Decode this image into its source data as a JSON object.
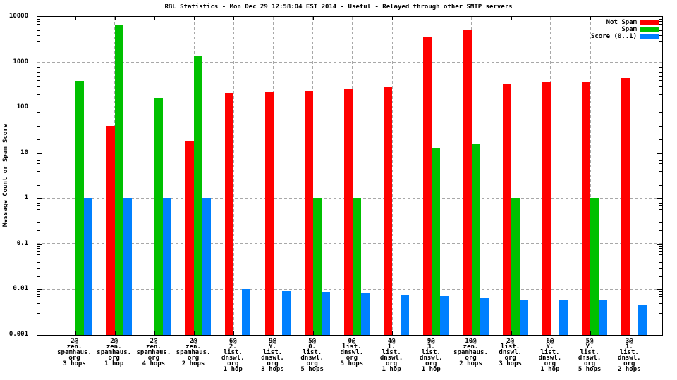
{
  "title": "RBL Statistics - Mon Dec 29 12:58:04 EST 2014 - Useful - Relayed through other SMTP servers",
  "y_axis_label": "Message Count or Spam Score",
  "legend": {
    "position": "top-right",
    "items": [
      {
        "label": "Not Spam",
        "color": "#ff0000"
      },
      {
        "label": "Spam",
        "color": "#00c000"
      },
      {
        "label": "Score (0..1)",
        "color": "#0080ff"
      }
    ]
  },
  "chart_data": {
    "type": "bar",
    "title": "RBL Statistics - Mon Dec 29 12:58:04 EST 2014 - Useful - Relayed through other SMTP servers",
    "xlabel": "",
    "ylabel": "Message Count or Spam Score",
    "y_scale": "log10",
    "ylim": [
      0.001,
      10000
    ],
    "y_tick_labels": [
      "10000",
      "1000",
      "100",
      "10",
      "1",
      "0.1",
      "0.01",
      "0.001"
    ],
    "y_tick_values": [
      10000,
      1000,
      100,
      10,
      1,
      0.1,
      0.01,
      0.001
    ],
    "grid": true,
    "legend_position": "top-right",
    "categories": [
      "2@ zen.spamhaus.org 3 hops",
      "2@ zen.spamhaus.org 1 hop",
      "2@ zen.spamhaus.org 4 hops",
      "2@ zen.spamhaus.org 2 hops",
      "6@ 2.list.dnswl.org 1 hop",
      "9@ Y.list.dnswl.org 3 hops",
      "5@ 0.list.dnswl.org 5 hops",
      "0@ list.dnswl.org 5 hops",
      "4@ 1.list.dnswl.org 1 hop",
      "9@ 3.list.dnswl.org 1 hop",
      "10@ zen.spamhaus.org 2 hops",
      "2@ list.dnswl.org 3 hops",
      "6@ Y.list.dnswl.org 1 hop",
      "5@ Y.list.dnswl.org 5 hops",
      "3@ 1.list.dnswl.org 2 hops"
    ],
    "category_lines": [
      [
        "2@",
        "zen.",
        "spamhaus.",
        "org",
        "3 hops"
      ],
      [
        "2@",
        "zen.",
        "spamhaus.",
        "org",
        "1 hop"
      ],
      [
        "2@",
        "zen.",
        "spamhaus.",
        "org",
        "4 hops"
      ],
      [
        "2@",
        "zen.",
        "spamhaus.",
        "org",
        "2 hops"
      ],
      [
        "6@",
        "2.",
        "list.",
        "dnswl.",
        "org",
        "1 hop"
      ],
      [
        "9@",
        "Y.",
        "list.",
        "dnswl.",
        "org",
        "3 hops"
      ],
      [
        "5@",
        "0.",
        "list.",
        "dnswl.",
        "org",
        "5 hops"
      ],
      [
        "0@",
        "list.",
        "dnswl.",
        "org",
        "5 hops"
      ],
      [
        "4@",
        "1.",
        "list.",
        "dnswl.",
        "org",
        "1 hop"
      ],
      [
        "9@",
        "3.",
        "list.",
        "dnswl.",
        "org",
        "1 hop"
      ],
      [
        "10@",
        "zen.",
        "spamhaus.",
        "org",
        "2 hops"
      ],
      [
        "2@",
        "list.",
        "dnswl.",
        "org",
        "3 hops"
      ],
      [
        "6@",
        "Y.",
        "list.",
        "dnswl.",
        "org",
        "1 hop"
      ],
      [
        "5@",
        "Y.",
        "list.",
        "dnswl.",
        "org",
        "5 hops"
      ],
      [
        "3@",
        "1.",
        "list.",
        "dnswl.",
        "org",
        "2 hops"
      ]
    ],
    "series": [
      {
        "name": "Not Spam",
        "color": "#ff0000",
        "values": [
          null,
          40,
          null,
          18,
          215,
          218,
          235,
          265,
          280,
          3750,
          5000,
          340,
          365,
          380,
          455
        ]
      },
      {
        "name": "Spam",
        "color": "#00c000",
        "values": [
          395,
          6500,
          163,
          1400,
          null,
          null,
          1,
          1,
          null,
          13,
          16,
          1,
          null,
          1,
          null
        ]
      },
      {
        "name": "Score (0..1)",
        "color": "#0080ff",
        "values": [
          1,
          1,
          1,
          1,
          0.01,
          0.0096,
          0.0088,
          0.0082,
          0.0076,
          0.0074,
          0.0066,
          0.006,
          0.0058,
          0.0058,
          0.0044
        ]
      }
    ]
  }
}
